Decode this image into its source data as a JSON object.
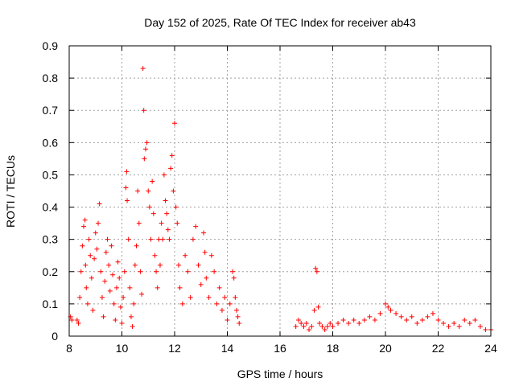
{
  "chart_data": {
    "type": "scatter",
    "title": "Day 152 of 2025, Rate Of TEC Index for receiver ab43",
    "xlabel": "GPS time / hours",
    "ylabel": "ROTI / TECUs",
    "xlim": [
      8,
      24
    ],
    "ylim": [
      0,
      0.9
    ],
    "xticks": [
      8,
      10,
      12,
      14,
      16,
      18,
      20,
      22,
      24
    ],
    "yticks": [
      0,
      0.1,
      0.2,
      0.3,
      0.4,
      0.5,
      0.6,
      0.7,
      0.8,
      0.9
    ],
    "xtick_labels": [
      "8",
      "10",
      "12",
      "14",
      "16",
      "18",
      "20",
      "22",
      "24"
    ],
    "ytick_labels": [
      "0",
      "0.1",
      "0.2",
      "0.3",
      "0.4",
      "0.5",
      "0.6",
      "0.7",
      "0.8",
      "0.9"
    ],
    "grid": true,
    "legend": "none",
    "marker": "plus",
    "color": "#ff0000",
    "series": [
      {
        "points": [
          [
            8.05,
            0.06
          ],
          [
            8.1,
            0.05
          ],
          [
            8.3,
            0.05
          ],
          [
            8.35,
            0.04
          ],
          [
            8.4,
            0.12
          ],
          [
            8.45,
            0.2
          ],
          [
            8.5,
            0.28
          ],
          [
            8.55,
            0.34
          ],
          [
            8.6,
            0.36
          ],
          [
            8.62,
            0.22
          ],
          [
            8.65,
            0.15
          ],
          [
            8.7,
            0.1
          ],
          [
            8.75,
            0.3
          ],
          [
            8.8,
            0.25
          ],
          [
            8.85,
            0.18
          ],
          [
            8.9,
            0.08
          ],
          [
            8.95,
            0.24
          ],
          [
            9.0,
            0.32
          ],
          [
            9.05,
            0.27
          ],
          [
            9.1,
            0.35
          ],
          [
            9.15,
            0.41
          ],
          [
            9.2,
            0.2
          ],
          [
            9.25,
            0.12
          ],
          [
            9.3,
            0.06
          ],
          [
            9.35,
            0.17
          ],
          [
            9.4,
            0.26
          ],
          [
            9.45,
            0.3
          ],
          [
            9.5,
            0.22
          ],
          [
            9.55,
            0.14
          ],
          [
            9.6,
            0.28
          ],
          [
            9.65,
            0.19
          ],
          [
            9.7,
            0.1
          ],
          [
            9.75,
            0.05
          ],
          [
            9.8,
            0.15
          ],
          [
            9.85,
            0.23
          ],
          [
            9.9,
            0.18
          ],
          [
            9.95,
            0.09
          ],
          [
            10.0,
            0.04
          ],
          [
            10.05,
            0.12
          ],
          [
            10.1,
            0.2
          ],
          [
            10.15,
            0.46
          ],
          [
            10.18,
            0.51
          ],
          [
            10.2,
            0.42
          ],
          [
            10.25,
            0.3
          ],
          [
            10.3,
            0.15
          ],
          [
            10.35,
            0.06
          ],
          [
            10.4,
            0.03
          ],
          [
            10.45,
            0.1
          ],
          [
            10.5,
            0.22
          ],
          [
            10.55,
            0.28
          ],
          [
            10.6,
            0.45
          ],
          [
            10.65,
            0.35
          ],
          [
            10.7,
            0.2
          ],
          [
            10.75,
            0.13
          ],
          [
            10.8,
            0.83
          ],
          [
            10.83,
            0.7
          ],
          [
            10.85,
            0.55
          ],
          [
            10.9,
            0.58
          ],
          [
            10.95,
            0.6
          ],
          [
            11.0,
            0.45
          ],
          [
            11.05,
            0.4
          ],
          [
            11.1,
            0.3
          ],
          [
            11.15,
            0.48
          ],
          [
            11.2,
            0.38
          ],
          [
            11.25,
            0.25
          ],
          [
            11.3,
            0.2
          ],
          [
            11.35,
            0.15
          ],
          [
            11.4,
            0.3
          ],
          [
            11.45,
            0.22
          ],
          [
            11.5,
            0.35
          ],
          [
            11.55,
            0.3
          ],
          [
            11.6,
            0.5
          ],
          [
            11.65,
            0.42
          ],
          [
            11.7,
            0.38
          ],
          [
            11.75,
            0.33
          ],
          [
            11.8,
            0.3
          ],
          [
            11.85,
            0.52
          ],
          [
            11.9,
            0.56
          ],
          [
            11.95,
            0.45
          ],
          [
            12.0,
            0.66
          ],
          [
            12.05,
            0.4
          ],
          [
            12.1,
            0.35
          ],
          [
            12.15,
            0.22
          ],
          [
            12.2,
            0.15
          ],
          [
            12.3,
            0.1
          ],
          [
            12.4,
            0.25
          ],
          [
            12.5,
            0.2
          ],
          [
            12.6,
            0.12
          ],
          [
            12.7,
            0.3
          ],
          [
            12.8,
            0.34
          ],
          [
            12.9,
            0.22
          ],
          [
            13.0,
            0.16
          ],
          [
            13.1,
            0.32
          ],
          [
            13.15,
            0.26
          ],
          [
            13.2,
            0.18
          ],
          [
            13.3,
            0.12
          ],
          [
            13.4,
            0.25
          ],
          [
            13.5,
            0.2
          ],
          [
            13.6,
            0.1
          ],
          [
            13.7,
            0.15
          ],
          [
            13.8,
            0.08
          ],
          [
            13.9,
            0.12
          ],
          [
            14.0,
            0.05
          ],
          [
            14.1,
            0.1
          ],
          [
            14.2,
            0.2
          ],
          [
            14.25,
            0.18
          ],
          [
            14.3,
            0.12
          ],
          [
            14.35,
            0.08
          ],
          [
            14.4,
            0.06
          ],
          [
            14.45,
            0.04
          ],
          [
            16.6,
            0.03
          ],
          [
            16.7,
            0.05
          ],
          [
            16.8,
            0.04
          ],
          [
            16.9,
            0.03
          ],
          [
            17.0,
            0.04
          ],
          [
            17.1,
            0.02
          ],
          [
            17.2,
            0.03
          ],
          [
            17.3,
            0.08
          ],
          [
            17.35,
            0.21
          ],
          [
            17.4,
            0.2
          ],
          [
            17.45,
            0.09
          ],
          [
            17.5,
            0.04
          ],
          [
            17.6,
            0.03
          ],
          [
            17.7,
            0.02
          ],
          [
            17.8,
            0.03
          ],
          [
            17.9,
            0.04
          ],
          [
            18.0,
            0.03
          ],
          [
            18.2,
            0.04
          ],
          [
            18.4,
            0.05
          ],
          [
            18.6,
            0.04
          ],
          [
            18.8,
            0.05
          ],
          [
            19.0,
            0.04
          ],
          [
            19.2,
            0.05
          ],
          [
            19.4,
            0.06
          ],
          [
            19.6,
            0.05
          ],
          [
            19.8,
            0.07
          ],
          [
            20.0,
            0.1
          ],
          [
            20.1,
            0.09
          ],
          [
            20.2,
            0.08
          ],
          [
            20.4,
            0.07
          ],
          [
            20.6,
            0.06
          ],
          [
            20.8,
            0.05
          ],
          [
            21.0,
            0.06
          ],
          [
            21.2,
            0.04
          ],
          [
            21.4,
            0.05
          ],
          [
            21.6,
            0.06
          ],
          [
            21.8,
            0.07
          ],
          [
            22.0,
            0.05
          ],
          [
            22.2,
            0.04
          ],
          [
            22.4,
            0.03
          ],
          [
            22.6,
            0.04
          ],
          [
            22.8,
            0.03
          ],
          [
            23.0,
            0.05
          ],
          [
            23.2,
            0.04
          ],
          [
            23.4,
            0.05
          ],
          [
            23.6,
            0.03
          ],
          [
            23.8,
            0.02
          ],
          [
            24.0,
            0.02
          ]
        ]
      }
    ]
  }
}
